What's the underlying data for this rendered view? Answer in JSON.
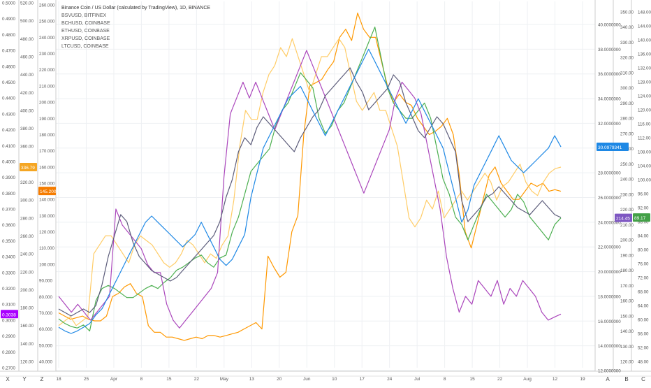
{
  "legend": {
    "title": "Binance Coin / US Dollar (calculated by TradingView), 1D, BINANCE",
    "series": [
      "BSVUSD, BITFINEX",
      "BCHUSD, COINBASE",
      "ETHUSD, COINBASE",
      "XRPUSD, COINBASE",
      "LTCUSD, COINBASE"
    ]
  },
  "scale_buttons": {
    "left": [
      "X",
      "Y",
      "Z"
    ],
    "right": [
      "A",
      "B",
      "C"
    ]
  },
  "colors": {
    "bnb": "#1e88e5",
    "bsv": "#ff9800",
    "bch": "#ffcc66",
    "eth": "#4caf50",
    "xrp": "#ab47bc",
    "ltc": "#5c5c7a",
    "grid": "#eef0f3",
    "axis_text": "#555555",
    "axis_line": "#cccccc"
  },
  "chart_data": {
    "type": "line",
    "x_ticks": [
      "18",
      "25",
      "Apr",
      "8",
      "15",
      "22",
      "May",
      "13",
      "20",
      "Jun",
      "10",
      "17",
      "24",
      "Jul",
      "8",
      "15",
      "22",
      "Aug",
      "12",
      "19"
    ],
    "axes": [
      {
        "id": "xrp",
        "side": "left",
        "ticks": [
          "0.5000",
          "0.4900",
          "0.4800",
          "0.4700",
          "0.4600",
          "0.4500",
          "0.4400",
          "0.4300",
          "0.4200",
          "0.4100",
          "0.4000",
          "0.3900",
          "0.3800",
          "0.3700",
          "0.3600",
          "0.3500",
          "0.3400",
          "0.3300",
          "0.3200",
          "0.3100",
          "0.3000",
          "0.2900",
          "0.2800",
          "0.2700"
        ],
        "last": "0.3038",
        "last_color": "#aa00ff"
      },
      {
        "id": "bch",
        "side": "left",
        "ticks": [
          "520.00",
          "500.00",
          "480.00",
          "460.00",
          "440.00",
          "420.00",
          "400.00",
          "380.00",
          "360.00",
          "340.00",
          "320.00",
          "300.00",
          "280.00",
          "260.00",
          "240.00",
          "220.00",
          "200.00",
          "180.00",
          "160.00",
          "140.00",
          "120.00"
        ],
        "last": "336.79",
        "last_color": "#f5a623"
      },
      {
        "id": "bsv",
        "side": "left",
        "ticks": [
          "260.000",
          "250.000",
          "240.000",
          "230.000",
          "220.000",
          "210.000",
          "200.000",
          "190.000",
          "180.000",
          "170.000",
          "160.000",
          "150.000",
          "140.000",
          "130.000",
          "120.000",
          "110.000",
          "100.000",
          "90.000",
          "80.000",
          "70.000",
          "60.000",
          "50.000",
          "40.000"
        ],
        "last": "145.200",
        "last_color": "#f57c00"
      },
      {
        "id": "bnb",
        "side": "right",
        "ticks": [
          "40.0000000",
          "38.0000000",
          "36.0000000",
          "34.0000000",
          "32.0000000",
          "30.0000000",
          "28.0000000",
          "26.0000000",
          "24.0000000",
          "22.0000000",
          "20.0000000",
          "18.0000000",
          "16.0000000",
          "14.0000000",
          "12.0000000"
        ],
        "last": "30.0979341",
        "last_color": "#1e88e5"
      },
      {
        "id": "eth",
        "side": "right",
        "ticks": [
          "350.00",
          "340.00",
          "330.00",
          "320.00",
          "310.00",
          "300.00",
          "290.00",
          "280.00",
          "270.00",
          "260.00",
          "250.00",
          "240.00",
          "230.00",
          "220.00",
          "210.00",
          "200.00",
          "190.00",
          "180.00",
          "170.00",
          "160.00",
          "150.00",
          "140.00",
          "130.00",
          "120.00"
        ],
        "last": "214.45",
        "last_color": "#7e57c2"
      },
      {
        "id": "ltc",
        "side": "right",
        "ticks": [
          "148.00",
          "144.00",
          "140.00",
          "136.00",
          "132.00",
          "128.00",
          "124.00",
          "120.00",
          "116.00",
          "112.00",
          "108.00",
          "104.00",
          "100.00",
          "96.00",
          "92.00",
          "88.00",
          "84.00",
          "80.00",
          "76.00",
          "72.00",
          "68.00",
          "64.00",
          "60.00",
          "56.00",
          "52.00",
          "48.00"
        ],
        "last": "89.17",
        "last_color": "#43a047"
      }
    ],
    "series": [
      {
        "name": "BSVUSD, BITFINEX",
        "color": "#ff9800",
        "values": [
          70,
          68,
          66,
          67,
          68,
          66,
          65,
          65,
          68,
          80,
          82,
          86,
          88,
          82,
          80,
          62,
          58,
          58,
          55,
          55,
          54,
          53,
          54,
          55,
          54,
          56,
          56,
          55,
          56,
          57,
          58,
          60,
          62,
          64,
          60,
          105,
          98,
          92,
          95,
          120,
          130,
          180,
          210,
          212,
          214,
          220,
          225,
          240,
          245,
          238,
          255,
          245,
          240,
          240,
          225,
          210,
          200,
          205,
          200,
          198,
          190,
          185,
          180,
          182,
          185,
          190,
          180,
          155,
          120,
          110,
          125,
          140,
          155,
          160,
          150,
          145,
          140,
          140,
          145,
          150,
          148,
          150,
          145,
          146,
          145
        ]
      },
      {
        "name": "BCHUSD, COINBASE",
        "color": "#ffcc66",
        "values": [
          160,
          165,
          170,
          160,
          165,
          170,
          240,
          250,
          260,
          260,
          250,
          240,
          230,
          250,
          260,
          255,
          250,
          240,
          230,
          225,
          230,
          240,
          255,
          250,
          240,
          230,
          240,
          235,
          250,
          260,
          300,
          360,
          400,
          390,
          390,
          420,
          440,
          450,
          470,
          460,
          480,
          460,
          440,
          420,
          440,
          460,
          460,
          470,
          480,
          470,
          440,
          410,
          400,
          410,
          420,
          400,
          400,
          380,
          360,
          320,
          280,
          270,
          280,
          300,
          290,
          310,
          280,
          290,
          300,
          310,
          300,
          310,
          320,
          330,
          320,
          300,
          315,
          320,
          330,
          340,
          320,
          310,
          305,
          320,
          330,
          335,
          336.79
        ]
      },
      {
        "name": "ETHUSD, COINBASE",
        "color": "#4caf50",
        "values": [
          148,
          145,
          143,
          142,
          144,
          140,
          160,
          168,
          170,
          168,
          165,
          162,
          162,
          165,
          168,
          170,
          168,
          172,
          175,
          180,
          182,
          185,
          188,
          190,
          185,
          182,
          188,
          190,
          205,
          215,
          230,
          245,
          250,
          255,
          260,
          275,
          285,
          290,
          300,
          310,
          305,
          300,
          280,
          270,
          275,
          285,
          290,
          300,
          310,
          320,
          330,
          340,
          320,
          300,
          290,
          285,
          280,
          280,
          285,
          290,
          280,
          260,
          240,
          230,
          215,
          210,
          200,
          210,
          220,
          230,
          225,
          220,
          215,
          220,
          230,
          225,
          215,
          210,
          205,
          200,
          210,
          214.45
        ]
      },
      {
        "name": "XRPUSD, COINBASE",
        "color": "#ab47bc",
        "values": [
          0.315,
          0.31,
          0.305,
          0.31,
          0.305,
          0.3,
          0.305,
          0.31,
          0.315,
          0.37,
          0.36,
          0.355,
          0.35,
          0.345,
          0.335,
          0.33,
          0.33,
          0.31,
          0.3,
          0.295,
          0.3,
          0.305,
          0.31,
          0.315,
          0.32,
          0.33,
          0.39,
          0.43,
          0.44,
          0.45,
          0.44,
          0.45,
          0.44,
          0.43,
          0.42,
          0.43,
          0.44,
          0.45,
          0.46,
          0.47,
          0.46,
          0.45,
          0.44,
          0.43,
          0.42,
          0.41,
          0.4,
          0.39,
          0.38,
          0.39,
          0.4,
          0.41,
          0.42,
          0.44,
          0.45,
          0.445,
          0.44,
          0.43,
          0.41,
          0.39,
          0.37,
          0.34,
          0.32,
          0.305,
          0.315,
          0.31,
          0.325,
          0.32,
          0.315,
          0.325,
          0.31,
          0.32,
          0.315,
          0.325,
          0.32,
          0.315,
          0.305,
          0.3,
          0.302,
          0.3038
        ]
      },
      {
        "name": "LTCUSD, COINBASE",
        "color": "#5c5c7a",
        "values": [
          63,
          62,
          61,
          62,
          63,
          62,
          64,
          70,
          78,
          84,
          90,
          88,
          82,
          78,
          76,
          74,
          73,
          72,
          71,
          72,
          74,
          76,
          78,
          80,
          82,
          84,
          88,
          95,
          100,
          108,
          112,
          110,
          115,
          118,
          116,
          114,
          112,
          110,
          108,
          112,
          115,
          118,
          120,
          124,
          126,
          128,
          130,
          132,
          128,
          125,
          120,
          122,
          124,
          126,
          130,
          128,
          122,
          118,
          114,
          112,
          115,
          118,
          116,
          112,
          108,
          94,
          88,
          90,
          92,
          95,
          96,
          98,
          96,
          94,
          92,
          91,
          90,
          92,
          94,
          92,
          90,
          89.17
        ]
      },
      {
        "name": "BNBUSD, BINANCE",
        "color": "#1e88e5",
        "values": [
          15.5,
          15.2,
          15.0,
          15.2,
          15.5,
          15.8,
          16.5,
          17.0,
          18.0,
          19.0,
          20.0,
          21.0,
          22.0,
          23.0,
          24.0,
          24.5,
          24.0,
          23.5,
          23.0,
          22.5,
          22.0,
          22.5,
          23.0,
          24.0,
          23.0,
          22.0,
          21.0,
          20.5,
          21.0,
          22.0,
          23.0,
          26.0,
          28.0,
          30.0,
          31.0,
          32.0,
          33.0,
          34.0,
          34.5,
          35.0,
          34.0,
          33.0,
          32.0,
          31.0,
          32.0,
          33.0,
          34.0,
          35.0,
          36.0,
          37.0,
          38.0,
          37.0,
          36.0,
          35.0,
          34.0,
          33.0,
          32.0,
          33.0,
          34.0,
          33.0,
          32.0,
          31.0,
          30.0,
          28.0,
          26.0,
          24.0,
          25.0,
          27.0,
          28.0,
          29.0,
          30.0,
          31.0,
          30.0,
          29.0,
          28.5,
          28.0,
          28.5,
          29.0,
          29.5,
          30.0,
          31.0,
          30.0979341
        ]
      }
    ]
  }
}
